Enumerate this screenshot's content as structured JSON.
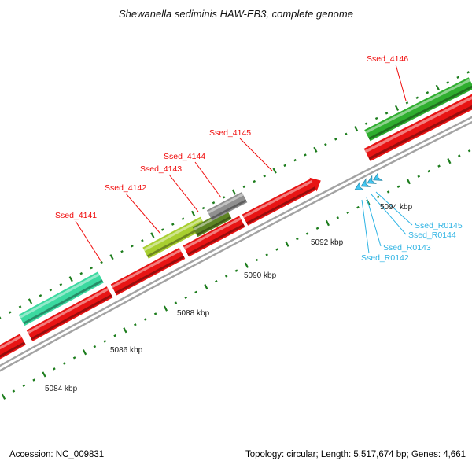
{
  "title": "Shewanella sediminis HAW-EB3, complete genome",
  "footer": {
    "accession": "Accession: NC_009831",
    "topology": "Topology: circular; Length: 5,517,674 bp; Genes: 4,661"
  },
  "gene_labels": [
    {
      "text": "Ssed_4141"
    },
    {
      "text": "Ssed_4142"
    },
    {
      "text": "Ssed_4143"
    },
    {
      "text": "Ssed_4144"
    },
    {
      "text": "Ssed_4145"
    },
    {
      "text": "Ssed_4146"
    }
  ],
  "rna_labels": [
    {
      "text": "Ssed_R0142"
    },
    {
      "text": "Ssed_R0143"
    },
    {
      "text": "Ssed_R0144"
    },
    {
      "text": "Ssed_R0145"
    }
  ],
  "position_labels": [
    "5084 kbp",
    "5086 kbp",
    "5088 kbp",
    "5090 kbp",
    "5092 kbp",
    "5094 kbp"
  ],
  "colors": {
    "gene_red": "#e81414",
    "gene_green": "#2fae2f",
    "gene_teal": "#3bd9a0",
    "gene_yellow_green": "#a8cf30",
    "gene_dark_olive": "#5e8424",
    "gene_gray": "#909090",
    "rna_cyan": "#41c6f2",
    "label_red": "#f00d0d",
    "label_cyan": "#2fb4e4",
    "tick_green": "#1d7d1d",
    "backbone_gray": "#a3a3a3"
  }
}
